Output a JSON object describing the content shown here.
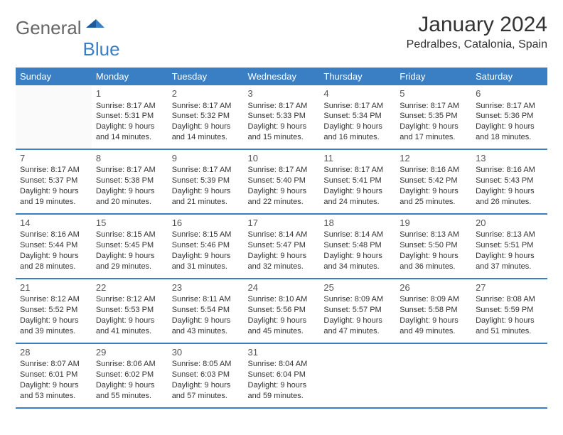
{
  "logo": {
    "general": "General",
    "blue": "Blue"
  },
  "title": "January 2024",
  "location": "Pedralbes, Catalonia, Spain",
  "colors": {
    "accent": "#3a7fc4",
    "text": "#333",
    "logoGray": "#666"
  },
  "weekdays": [
    "Sunday",
    "Monday",
    "Tuesday",
    "Wednesday",
    "Thursday",
    "Friday",
    "Saturday"
  ],
  "days": [
    {
      "n": "1",
      "sr": "8:17 AM",
      "ss": "5:31 PM",
      "dl": "9 hours and 14 minutes."
    },
    {
      "n": "2",
      "sr": "8:17 AM",
      "ss": "5:32 PM",
      "dl": "9 hours and 14 minutes."
    },
    {
      "n": "3",
      "sr": "8:17 AM",
      "ss": "5:33 PM",
      "dl": "9 hours and 15 minutes."
    },
    {
      "n": "4",
      "sr": "8:17 AM",
      "ss": "5:34 PM",
      "dl": "9 hours and 16 minutes."
    },
    {
      "n": "5",
      "sr": "8:17 AM",
      "ss": "5:35 PM",
      "dl": "9 hours and 17 minutes."
    },
    {
      "n": "6",
      "sr": "8:17 AM",
      "ss": "5:36 PM",
      "dl": "9 hours and 18 minutes."
    },
    {
      "n": "7",
      "sr": "8:17 AM",
      "ss": "5:37 PM",
      "dl": "9 hours and 19 minutes."
    },
    {
      "n": "8",
      "sr": "8:17 AM",
      "ss": "5:38 PM",
      "dl": "9 hours and 20 minutes."
    },
    {
      "n": "9",
      "sr": "8:17 AM",
      "ss": "5:39 PM",
      "dl": "9 hours and 21 minutes."
    },
    {
      "n": "10",
      "sr": "8:17 AM",
      "ss": "5:40 PM",
      "dl": "9 hours and 22 minutes."
    },
    {
      "n": "11",
      "sr": "8:17 AM",
      "ss": "5:41 PM",
      "dl": "9 hours and 24 minutes."
    },
    {
      "n": "12",
      "sr": "8:16 AM",
      "ss": "5:42 PM",
      "dl": "9 hours and 25 minutes."
    },
    {
      "n": "13",
      "sr": "8:16 AM",
      "ss": "5:43 PM",
      "dl": "9 hours and 26 minutes."
    },
    {
      "n": "14",
      "sr": "8:16 AM",
      "ss": "5:44 PM",
      "dl": "9 hours and 28 minutes."
    },
    {
      "n": "15",
      "sr": "8:15 AM",
      "ss": "5:45 PM",
      "dl": "9 hours and 29 minutes."
    },
    {
      "n": "16",
      "sr": "8:15 AM",
      "ss": "5:46 PM",
      "dl": "9 hours and 31 minutes."
    },
    {
      "n": "17",
      "sr": "8:14 AM",
      "ss": "5:47 PM",
      "dl": "9 hours and 32 minutes."
    },
    {
      "n": "18",
      "sr": "8:14 AM",
      "ss": "5:48 PM",
      "dl": "9 hours and 34 minutes."
    },
    {
      "n": "19",
      "sr": "8:13 AM",
      "ss": "5:50 PM",
      "dl": "9 hours and 36 minutes."
    },
    {
      "n": "20",
      "sr": "8:13 AM",
      "ss": "5:51 PM",
      "dl": "9 hours and 37 minutes."
    },
    {
      "n": "21",
      "sr": "8:12 AM",
      "ss": "5:52 PM",
      "dl": "9 hours and 39 minutes."
    },
    {
      "n": "22",
      "sr": "8:12 AM",
      "ss": "5:53 PM",
      "dl": "9 hours and 41 minutes."
    },
    {
      "n": "23",
      "sr": "8:11 AM",
      "ss": "5:54 PM",
      "dl": "9 hours and 43 minutes."
    },
    {
      "n": "24",
      "sr": "8:10 AM",
      "ss": "5:56 PM",
      "dl": "9 hours and 45 minutes."
    },
    {
      "n": "25",
      "sr": "8:09 AM",
      "ss": "5:57 PM",
      "dl": "9 hours and 47 minutes."
    },
    {
      "n": "26",
      "sr": "8:09 AM",
      "ss": "5:58 PM",
      "dl": "9 hours and 49 minutes."
    },
    {
      "n": "27",
      "sr": "8:08 AM",
      "ss": "5:59 PM",
      "dl": "9 hours and 51 minutes."
    },
    {
      "n": "28",
      "sr": "8:07 AM",
      "ss": "6:01 PM",
      "dl": "9 hours and 53 minutes."
    },
    {
      "n": "29",
      "sr": "8:06 AM",
      "ss": "6:02 PM",
      "dl": "9 hours and 55 minutes."
    },
    {
      "n": "30",
      "sr": "8:05 AM",
      "ss": "6:03 PM",
      "dl": "9 hours and 57 minutes."
    },
    {
      "n": "31",
      "sr": "8:04 AM",
      "ss": "6:04 PM",
      "dl": "9 hours and 59 minutes."
    }
  ],
  "labels": {
    "sunrise": "Sunrise:",
    "sunset": "Sunset:",
    "daylight": "Daylight:"
  },
  "layout": {
    "startWeekday": 1,
    "cols": 7
  }
}
